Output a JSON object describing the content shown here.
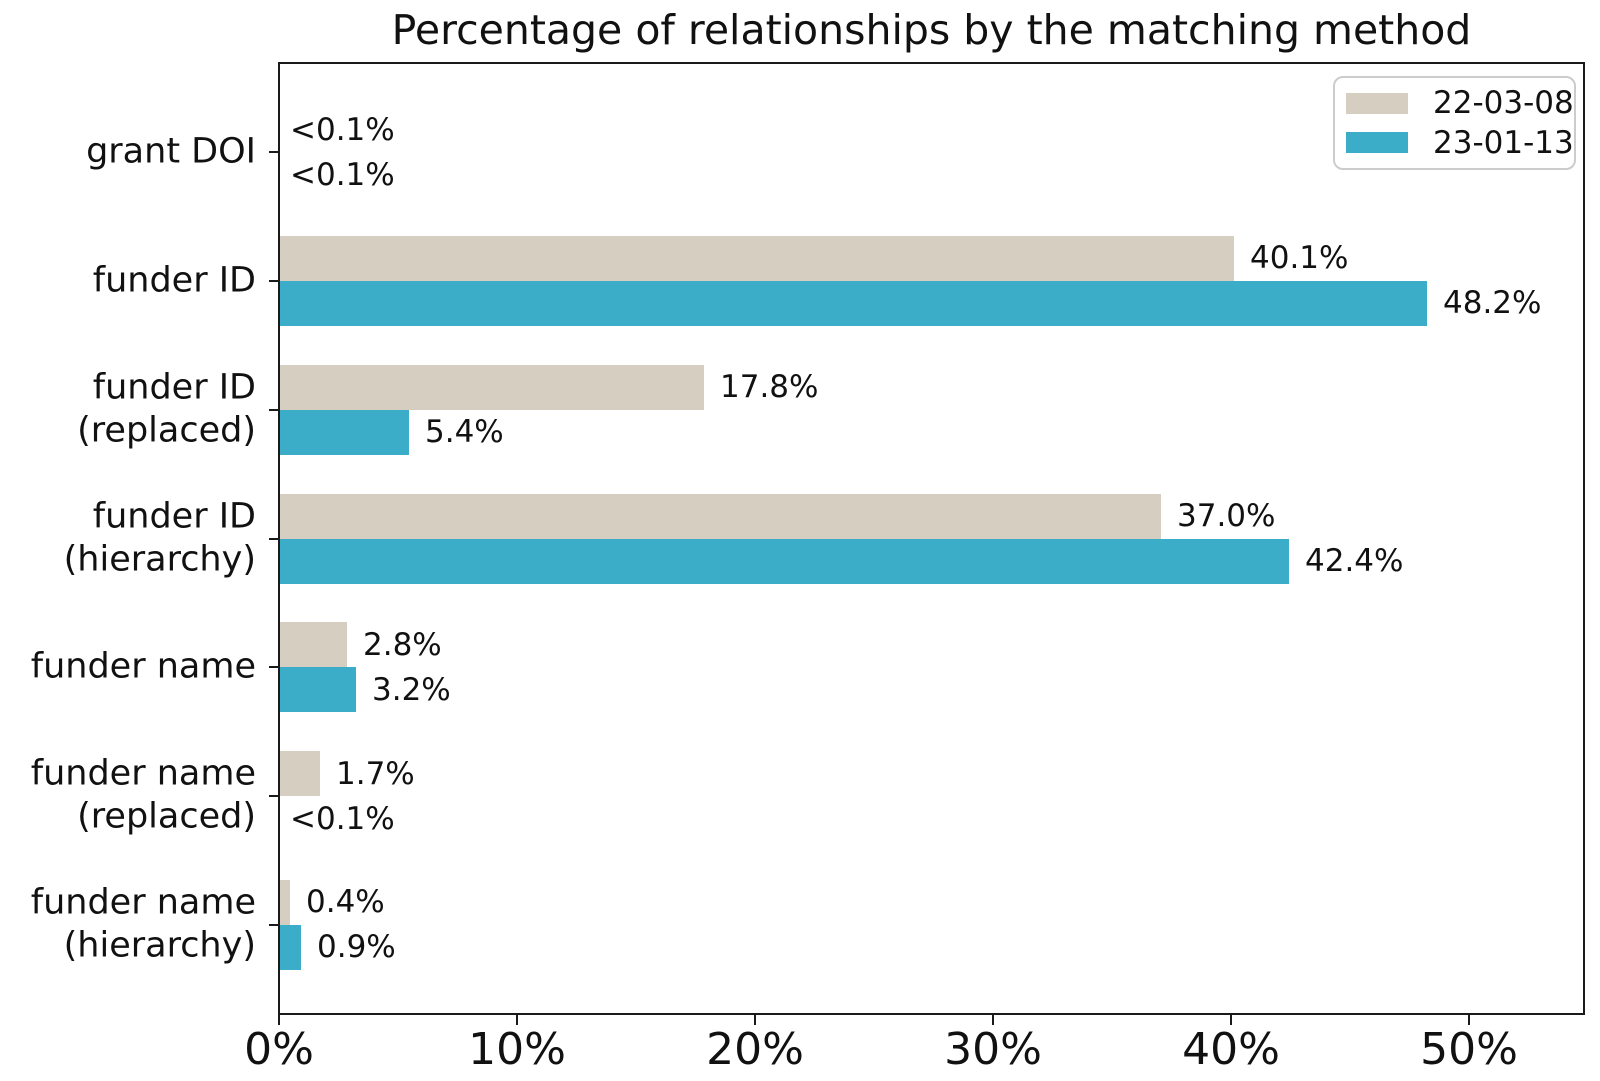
{
  "chart_data": {
    "type": "bar",
    "orientation": "horizontal",
    "title": "Percentage of relationships by the matching method",
    "categories": [
      "grant DOI",
      "funder ID",
      "funder ID\n(replaced)",
      "funder ID\n(hierarchy)",
      "funder name",
      "funder name\n(replaced)",
      "funder name\n(hierarchy)"
    ],
    "series": [
      {
        "name": "22-03-08",
        "color": "#d5cec1",
        "values": [
          0.05,
          40.1,
          17.8,
          37.0,
          2.8,
          1.7,
          0.4
        ],
        "labels": [
          "<0.1%",
          "40.1%",
          "17.8%",
          "37.0%",
          "2.8%",
          "1.7%",
          "0.4%"
        ]
      },
      {
        "name": "23-01-13",
        "color": "#3cadc8",
        "values": [
          0.05,
          48.2,
          5.4,
          42.4,
          3.2,
          0.05,
          0.9
        ],
        "labels": [
          "<0.1%",
          "48.2%",
          "5.4%",
          "42.4%",
          "3.2%",
          "<0.1%",
          "0.9%"
        ]
      }
    ],
    "xlabel": "",
    "ylabel": "",
    "xlim": [
      0,
      55
    ],
    "x_ticks": [
      {
        "value": 0,
        "label": "0%"
      },
      {
        "value": 10,
        "label": "10%"
      },
      {
        "value": 20,
        "label": "20%"
      },
      {
        "value": 30,
        "label": "30%"
      },
      {
        "value": 40,
        "label": "40%"
      },
      {
        "value": 50,
        "label": "50%"
      }
    ],
    "legend_position": "upper right",
    "grid": false
  }
}
